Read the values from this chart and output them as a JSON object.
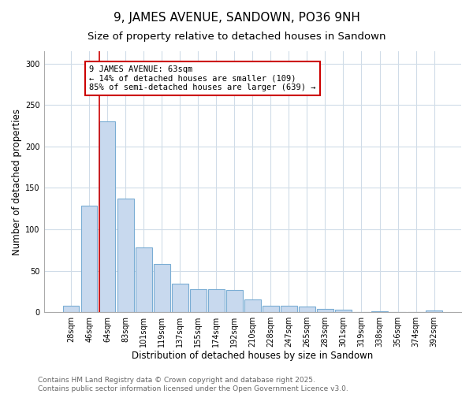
{
  "title": "9, JAMES AVENUE, SANDOWN, PO36 9NH",
  "subtitle": "Size of property relative to detached houses in Sandown",
  "xlabel": "Distribution of detached houses by size in Sandown",
  "ylabel": "Number of detached properties",
  "categories": [
    "28sqm",
    "46sqm",
    "64sqm",
    "83sqm",
    "101sqm",
    "119sqm",
    "137sqm",
    "155sqm",
    "174sqm",
    "192sqm",
    "210sqm",
    "228sqm",
    "247sqm",
    "265sqm",
    "283sqm",
    "301sqm",
    "319sqm",
    "338sqm",
    "356sqm",
    "374sqm",
    "392sqm"
  ],
  "values": [
    8,
    129,
    230,
    137,
    78,
    58,
    34,
    28,
    28,
    27,
    15,
    8,
    8,
    7,
    4,
    3,
    0,
    1,
    0,
    0,
    2
  ],
  "bar_color": "#c8d9ee",
  "bar_edge_color": "#7aadd4",
  "red_line_index": 2,
  "annotation_text": "9 JAMES AVENUE: 63sqm\n← 14% of detached houses are smaller (109)\n85% of semi-detached houses are larger (639) →",
  "annotation_box_color": "#ffffff",
  "annotation_border_color": "#cc0000",
  "ylim": [
    0,
    315
  ],
  "yticks": [
    0,
    50,
    100,
    150,
    200,
    250,
    300
  ],
  "footer1": "Contains HM Land Registry data © Crown copyright and database right 2025.",
  "footer2": "Contains public sector information licensed under the Open Government Licence v3.0.",
  "bg_color": "#ffffff",
  "grid_color": "#d0dce8",
  "title_fontsize": 11,
  "subtitle_fontsize": 9.5,
  "axis_label_fontsize": 8.5,
  "tick_fontsize": 7,
  "annotation_fontsize": 7.5,
  "footer_fontsize": 6.5
}
